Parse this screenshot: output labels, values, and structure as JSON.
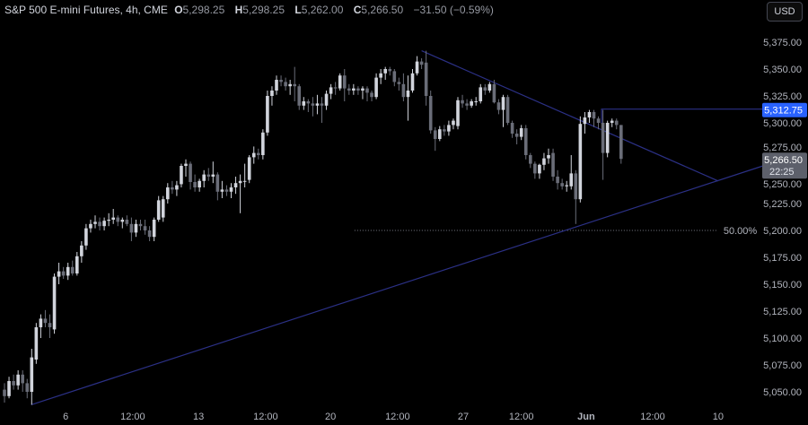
{
  "header": {
    "symbol": "S&P 500 E-mini Futures, 4h, CME",
    "open_label": "O",
    "open": "5,298.25",
    "high_label": "H",
    "high": "5,298.25",
    "low_label": "L",
    "low": "5,262.00",
    "close_label": "C",
    "close": "5,266.50",
    "change": "−31.50 (−0.59%)",
    "currency_button": "USD"
  },
  "colors": {
    "background": "#000000",
    "up_candle": "#d1d4dc",
    "down_candle": "#6a6d78",
    "trendline": "#2b3085",
    "price_label_blue": "#2962ff",
    "last_price_label": "#5d606b",
    "fib_line": "#787b86"
  },
  "chart_data": {
    "type": "candlestick",
    "timeframe": "4h",
    "ylim": [
      5040,
      5380
    ],
    "y_ticks": [
      "5,050.00",
      "5,075.00",
      "5,100.00",
      "5,125.00",
      "5,150.00",
      "5,175.00",
      "5,200.00",
      "5,225.00",
      "5,250.00",
      "5,275.00",
      "5,300.00",
      "5,325.00",
      "5,350.00",
      "5,375.00"
    ],
    "y_tick_values": [
      5050,
      5075,
      5100,
      5125,
      5150,
      5175,
      5200,
      5225,
      5250,
      5275,
      5300,
      5325,
      5350,
      5375
    ],
    "x_ticks": [
      {
        "label": "6",
        "bar": 13.5
      },
      {
        "label": "12:00",
        "bar": 28.3
      },
      {
        "label": "13",
        "bar": 42.8
      },
      {
        "label": "12:00",
        "bar": 57.6
      },
      {
        "label": "20",
        "bar": 71.9
      },
      {
        "label": "12:00",
        "bar": 86.7
      },
      {
        "label": "27",
        "bar": 101.2
      },
      {
        "label": "12:00",
        "bar": 114
      },
      {
        "label": "Jun",
        "bar": 128.3,
        "bold": true
      },
      {
        "label": "12:00",
        "bar": 142.97
      },
      {
        "label": "10",
        "bar": 157.4
      }
    ],
    "ohlc": [
      [
        5052,
        5058,
        5040,
        5046
      ],
      [
        5046,
        5064,
        5044,
        5060
      ],
      [
        5060,
        5066,
        5052,
        5056
      ],
      [
        5056,
        5070,
        5052,
        5066
      ],
      [
        5066,
        5070,
        5050,
        5058
      ],
      [
        5058,
        5062,
        5044,
        5050
      ],
      [
        5050,
        5090,
        5038,
        5082
      ],
      [
        5080,
        5114,
        5076,
        5110
      ],
      [
        5110,
        5122,
        5100,
        5118
      ],
      [
        5118,
        5126,
        5110,
        5114
      ],
      [
        5114,
        5122,
        5100,
        5110
      ],
      [
        5108,
        5160,
        5104,
        5157
      ],
      [
        5157,
        5170,
        5150,
        5162
      ],
      [
        5162,
        5166,
        5155,
        5158
      ],
      [
        5158,
        5170,
        5154,
        5166
      ],
      [
        5166,
        5172,
        5158,
        5160
      ],
      [
        5160,
        5180,
        5158,
        5176
      ],
      [
        5176,
        5190,
        5170,
        5186
      ],
      [
        5186,
        5206,
        5182,
        5202
      ],
      [
        5202,
        5210,
        5198,
        5206
      ],
      [
        5206,
        5214,
        5202,
        5208
      ],
      [
        5208,
        5212,
        5200,
        5204
      ],
      [
        5204,
        5212,
        5200,
        5209
      ],
      [
        5209,
        5216,
        5204,
        5210
      ],
      [
        5210,
        5220,
        5206,
        5212
      ],
      [
        5212,
        5214,
        5204,
        5208
      ],
      [
        5208,
        5212,
        5202,
        5210
      ],
      [
        5210,
        5214,
        5204,
        5206
      ],
      [
        5206,
        5212,
        5190,
        5198
      ],
      [
        5198,
        5210,
        5194,
        5206
      ],
      [
        5206,
        5210,
        5200,
        5204
      ],
      [
        5204,
        5210,
        5196,
        5200
      ],
      [
        5200,
        5204,
        5190,
        5194
      ],
      [
        5194,
        5212,
        5190,
        5210
      ],
      [
        5210,
        5232,
        5208,
        5228
      ],
      [
        5212,
        5232,
        5208,
        5229
      ],
      [
        5229,
        5244,
        5225,
        5240
      ],
      [
        5240,
        5246,
        5234,
        5238
      ],
      [
        5238,
        5246,
        5232,
        5242
      ],
      [
        5243,
        5262,
        5240,
        5260
      ],
      [
        5260,
        5266,
        5250,
        5262
      ],
      [
        5262,
        5264,
        5238,
        5245
      ],
      [
        5245,
        5252,
        5236,
        5240
      ],
      [
        5240,
        5248,
        5236,
        5246
      ],
      [
        5246,
        5256,
        5240,
        5252
      ],
      [
        5252,
        5258,
        5246,
        5250
      ],
      [
        5250,
        5264,
        5244,
        5252
      ],
      [
        5252,
        5254,
        5228,
        5236
      ],
      [
        5236,
        5246,
        5230,
        5238
      ],
      [
        5238,
        5242,
        5232,
        5236
      ],
      [
        5236,
        5244,
        5230,
        5240
      ],
      [
        5240,
        5250,
        5234,
        5244
      ],
      [
        5244,
        5252,
        5216,
        5246
      ],
      [
        5246,
        5262,
        5240,
        5246
      ],
      [
        5247,
        5270,
        5244,
        5268
      ],
      [
        5268,
        5278,
        5262,
        5272
      ],
      [
        5272,
        5276,
        5266,
        5270
      ],
      [
        5270,
        5294,
        5266,
        5291
      ],
      [
        5291,
        5330,
        5288,
        5325
      ],
      [
        5325,
        5334,
        5316,
        5330
      ],
      [
        5330,
        5344,
        5326,
        5340
      ],
      [
        5340,
        5344,
        5334,
        5338
      ],
      [
        5338,
        5342,
        5330,
        5334
      ],
      [
        5334,
        5340,
        5326,
        5336
      ],
      [
        5336,
        5352,
        5320,
        5334
      ],
      [
        5334,
        5336,
        5312,
        5316
      ],
      [
        5316,
        5324,
        5312,
        5320
      ],
      [
        5320,
        5322,
        5310,
        5318
      ],
      [
        5318,
        5324,
        5306,
        5316
      ],
      [
        5316,
        5326,
        5308,
        5318
      ],
      [
        5318,
        5324,
        5300,
        5316
      ],
      [
        5316,
        5330,
        5312,
        5327
      ],
      [
        5327,
        5336,
        5322,
        5333
      ],
      [
        5333,
        5338,
        5326,
        5332
      ],
      [
        5332,
        5346,
        5330,
        5344
      ],
      [
        5344,
        5350,
        5320,
        5332
      ],
      [
        5332,
        5336,
        5326,
        5330
      ],
      [
        5330,
        5336,
        5326,
        5332
      ],
      [
        5332,
        5334,
        5326,
        5330
      ],
      [
        5330,
        5334,
        5322,
        5332
      ],
      [
        5332,
        5334,
        5320,
        5328
      ],
      [
        5328,
        5330,
        5320,
        5324
      ],
      [
        5324,
        5346,
        5322,
        5342
      ],
      [
        5342,
        5350,
        5336,
        5346
      ],
      [
        5346,
        5352,
        5340,
        5350
      ],
      [
        5350,
        5352,
        5344,
        5348
      ],
      [
        5348,
        5350,
        5334,
        5338
      ],
      [
        5338,
        5342,
        5330,
        5336
      ],
      [
        5336,
        5346,
        5320,
        5324
      ],
      [
        5324,
        5344,
        5302,
        5330
      ],
      [
        5330,
        5350,
        5328,
        5346
      ],
      [
        5346,
        5362,
        5344,
        5357
      ],
      [
        5357,
        5360,
        5350,
        5354
      ],
      [
        5356,
        5367,
        5316,
        5325
      ],
      [
        5325,
        5330,
        5290,
        5293
      ],
      [
        5293,
        5296,
        5274,
        5285
      ],
      [
        5285,
        5297,
        5283,
        5294
      ],
      [
        5294,
        5298,
        5288,
        5292
      ],
      [
        5292,
        5302,
        5288,
        5298
      ],
      [
        5298,
        5304,
        5294,
        5302
      ],
      [
        5297,
        5324,
        5294,
        5321
      ],
      [
        5321,
        5326,
        5314,
        5318
      ],
      [
        5318,
        5322,
        5312,
        5316
      ],
      [
        5316,
        5322,
        5314,
        5320
      ],
      [
        5320,
        5324,
        5316,
        5320
      ],
      [
        5320,
        5336,
        5318,
        5333
      ],
      [
        5333,
        5336,
        5326,
        5330
      ],
      [
        5330,
        5338,
        5328,
        5336
      ],
      [
        5336,
        5340,
        5318,
        5319
      ],
      [
        5319,
        5322,
        5308,
        5312
      ],
      [
        5312,
        5326,
        5296,
        5324
      ],
      [
        5324,
        5326,
        5298,
        5300
      ],
      [
        5300,
        5302,
        5286,
        5290
      ],
      [
        5290,
        5294,
        5280,
        5287
      ],
      [
        5287,
        5298,
        5284,
        5295
      ],
      [
        5295,
        5298,
        5266,
        5270
      ],
      [
        5270,
        5272,
        5258,
        5262
      ],
      [
        5262,
        5264,
        5248,
        5253
      ],
      [
        5253,
        5262,
        5248,
        5261
      ],
      [
        5261,
        5272,
        5256,
        5267
      ],
      [
        5267,
        5276,
        5262,
        5270
      ],
      [
        5272,
        5276,
        5246,
        5250
      ],
      [
        5250,
        5256,
        5238,
        5244
      ],
      [
        5244,
        5248,
        5238,
        5241
      ],
      [
        5241,
        5246,
        5236,
        5242
      ],
      [
        5241,
        5270,
        5238,
        5253
      ],
      [
        5253,
        5256,
        5206,
        5229
      ],
      [
        5229,
        5306,
        5226,
        5299
      ],
      [
        5299,
        5310,
        5290,
        5305
      ],
      [
        5305,
        5312,
        5300,
        5310
      ],
      [
        5310,
        5312,
        5296,
        5304
      ],
      [
        5304,
        5306,
        5294,
        5300
      ],
      [
        5300,
        5312,
        5247,
        5272
      ],
      [
        5272,
        5302,
        5268,
        5300
      ],
      [
        5300,
        5304,
        5296,
        5302
      ],
      [
        5302,
        5304,
        5294,
        5298
      ],
      [
        5298,
        5298,
        5262,
        5266.5
      ]
    ],
    "drawings": {
      "descending_trendline": {
        "from": {
          "bar": 92,
          "price": 5367
        },
        "to": {
          "bar": 157.4,
          "price": 5246
        }
      },
      "ascending_trendline": {
        "from": {
          "bar": 5.9,
          "price": 5038
        },
        "to": {
          "bar": 167.3,
          "price": 5260
        }
      },
      "horizontal_level": {
        "from_bar": 131.7,
        "price": 5312.75,
        "label": "5,312.75"
      },
      "fib_level": {
        "from_bar": 77.2,
        "to_bar": 157.4,
        "price": 5200,
        "label": "50.00%"
      }
    },
    "last_price": {
      "price": 5266.5,
      "label": "5,266.50",
      "countdown": "22:25"
    }
  }
}
